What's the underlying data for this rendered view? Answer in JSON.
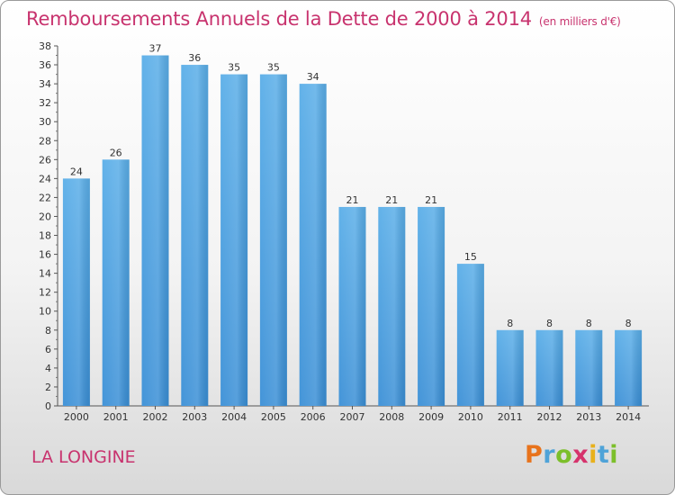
{
  "title": "Remboursements Annuels de la Dette de 2000 à 2014",
  "subtitle": "(en milliers d'€)",
  "location": "LA LONGINE",
  "logo": {
    "letters": [
      "P",
      "r",
      "o",
      "x",
      "i",
      "t",
      "i"
    ],
    "colors": [
      "#e8731c",
      "#4fa3d8",
      "#7cbf2a",
      "#d6336c",
      "#e8b11c",
      "#4fa3d8",
      "#7cbf2a"
    ]
  },
  "colors": {
    "bar": "#3a8fd6",
    "bar_top": "#5aaee8",
    "text_accent": "#c8336e"
  },
  "chart_data": {
    "type": "bar",
    "title": "Remboursements Annuels de la Dette de 2000 à 2014",
    "subtitle": "(en milliers d'€)",
    "xlabel": "",
    "ylabel": "",
    "categories": [
      "2000",
      "2001",
      "2002",
      "2003",
      "2004",
      "2005",
      "2006",
      "2007",
      "2008",
      "2009",
      "2010",
      "2011",
      "2012",
      "2013",
      "2014"
    ],
    "values": [
      24,
      26,
      37,
      36,
      35,
      35,
      34,
      21,
      21,
      21,
      15,
      8,
      8,
      8,
      8
    ],
    "ylim": [
      0,
      38
    ],
    "yticks": [
      0,
      2,
      4,
      6,
      8,
      10,
      12,
      14,
      16,
      18,
      20,
      22,
      24,
      26,
      28,
      30,
      32,
      34,
      36,
      38
    ],
    "grid": false,
    "legend": "none"
  }
}
